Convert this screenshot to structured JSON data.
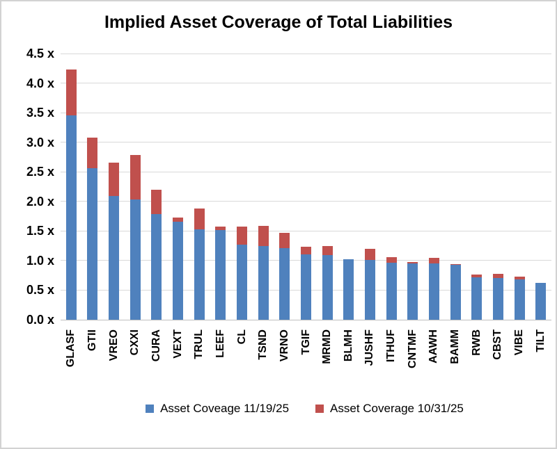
{
  "chart_data": {
    "type": "bar",
    "title": "Implied Asset Coverage of Total Liabilities",
    "categories": [
      "GLASF",
      "GTII",
      "VREO",
      "CXXI",
      "CURA",
      "VEXT",
      "TRUL",
      "LEEF",
      "CL",
      "TSND",
      "VRNO",
      "TGIF",
      "MRMD",
      "BLMH",
      "JUSHF",
      "ITHUF",
      "CNTMF",
      "AAWH",
      "BAMM",
      "RWB",
      "CBST",
      "VIBE",
      "TILT"
    ],
    "series": [
      {
        "name": "Asset Coveage 11/19/25",
        "color": "#4F81BD",
        "values": [
          3.45,
          2.56,
          2.09,
          2.03,
          1.79,
          1.66,
          1.53,
          1.52,
          1.27,
          1.25,
          1.21,
          1.1,
          1.09,
          1.02,
          1.01,
          0.96,
          0.95,
          0.95,
          0.93,
          0.72,
          0.7,
          0.68,
          0.62
        ]
      },
      {
        "name": "Asset Coverage 10/31/25",
        "color": "#C0504D",
        "values": [
          4.23,
          3.08,
          2.66,
          2.79,
          2.2,
          1.73,
          1.88,
          1.58,
          1.57,
          1.59,
          1.47,
          1.23,
          1.24,
          1.02,
          1.2,
          1.06,
          0.97,
          1.05,
          0.94,
          0.76,
          0.78,
          0.73,
          0.62
        ]
      }
    ],
    "xlabel": "",
    "ylabel": "",
    "ylim": [
      0,
      4.5
    ],
    "y_ticks": [
      "4.5 x",
      "4.0 x",
      "3.5 x",
      "3.0 x",
      "2.5 x",
      "2.0 x",
      "1.5 x",
      "1.0 x",
      "0.5 x",
      "0.0 x"
    ],
    "grid": true,
    "legend_position": "bottom",
    "overlay_note": "10/31/25 red bars are drawn behind 11/19/25 blue bars; visible red segment equals the decline since 10/31/25"
  },
  "colors": {
    "background": "#FFFFFF",
    "border": "#D2D2D2",
    "gridline": "#D9D9D9",
    "axis_line": "#BFBFBF",
    "text": "#000000"
  }
}
